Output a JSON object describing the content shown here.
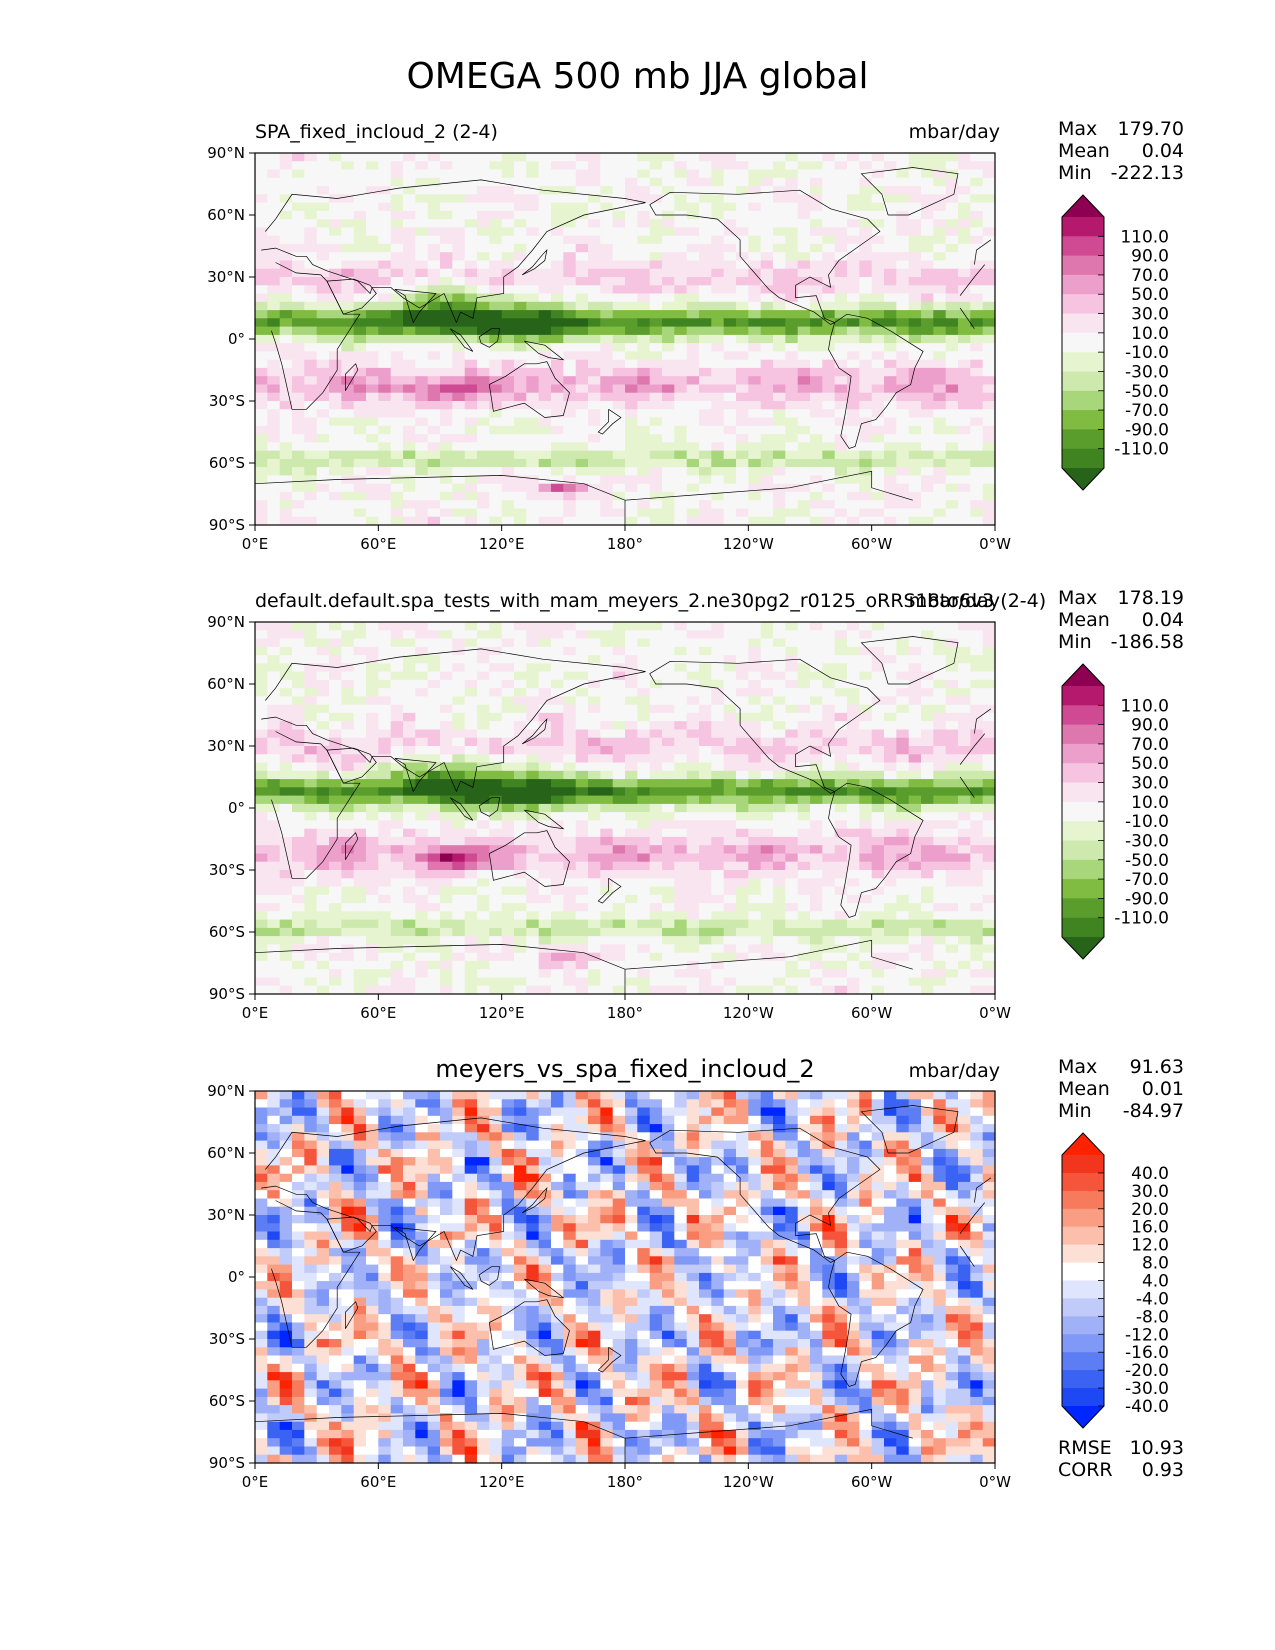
{
  "title": "OMEGA 500 mb JJA global",
  "panels": [
    {
      "left_title": "SPA_fixed_incloud_2 (2-4)",
      "center_title": "",
      "units": "mbar/day",
      "stats": [
        {
          "label": "Max",
          "value": "179.70"
        },
        {
          "label": "Mean",
          "value": "0.04"
        },
        {
          "label": "Min",
          "value": "-222.13"
        }
      ],
      "colorbar": "omega"
    },
    {
      "left_title": "default.default.spa_tests_with_mam_meyers_2.ne30pg2_r0125_oRRS18to6v3 (2-4)",
      "center_title": "",
      "units": "mbar/day",
      "stats": [
        {
          "label": "Max",
          "value": "178.19"
        },
        {
          "label": "Mean",
          "value": "0.04"
        },
        {
          "label": "Min",
          "value": "-186.58"
        }
      ],
      "colorbar": "omega"
    },
    {
      "left_title": "",
      "center_title": "meyers_vs_spa_fixed_incloud_2",
      "units": "mbar/day",
      "stats": [
        {
          "label": "Max",
          "value": "91.63"
        },
        {
          "label": "Mean",
          "value": "0.01"
        },
        {
          "label": "Min",
          "value": "-84.97"
        }
      ],
      "extra_stats": [
        {
          "label": "RMSE",
          "value": "10.93"
        },
        {
          "label": "CORR",
          "value": "0.93"
        }
      ],
      "colorbar": "diff"
    }
  ],
  "axes": {
    "lat_ticks": [
      "90°N",
      "60°N",
      "30°N",
      "0°",
      "30°S",
      "60°S",
      "90°S"
    ],
    "lon_ticks": [
      "0°E",
      "60°E",
      "120°E",
      "180°",
      "120°W",
      "60°W",
      "0°W"
    ]
  },
  "colorbars": {
    "omega": {
      "labels": [
        "110.0",
        "90.0",
        "70.0",
        "50.0",
        "30.0",
        "10.0",
        "-10.0",
        "-30.0",
        "-50.0",
        "-70.0",
        "-90.0",
        "-110.0"
      ],
      "colors": [
        "#8e0152",
        "#b4196e",
        "#cf4a93",
        "#de77ae",
        "#ec9fca",
        "#f6c4e0",
        "#f9e5f0",
        "#f7f7f7",
        "#e6f5d0",
        "#cde9ae",
        "#a8d67a",
        "#7fbc41",
        "#5a9d2d",
        "#3f8421",
        "#276419"
      ]
    },
    "diff": {
      "labels": [
        "40.0",
        "30.0",
        "20.0",
        "16.0",
        "12.0",
        "8.0",
        "4.0",
        "-4.0",
        "-8.0",
        "-12.0",
        "-16.0",
        "-20.0",
        "-30.0",
        "-40.0"
      ],
      "colors": [
        "#ff2200",
        "#f2361e",
        "#f5553a",
        "#f87a5c",
        "#fa9e83",
        "#fcbfac",
        "#fde0d5",
        "#ffffff",
        "#dfe5fc",
        "#c1cbfa",
        "#a1b1f8",
        "#8098f6",
        "#5c7df4",
        "#3a63f3",
        "#1f48f5",
        "#0026ff"
      ]
    }
  }
}
